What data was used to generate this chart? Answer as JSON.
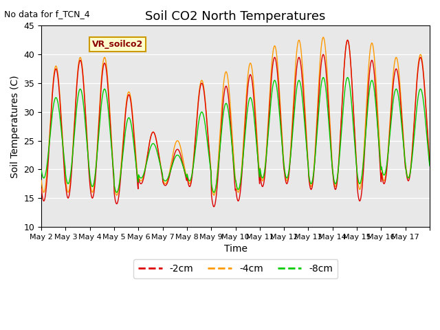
{
  "title": "Soil CO2 North Temperatures",
  "ylabel": "Soil Temperatures (C)",
  "xlabel": "Time",
  "no_data_text": "No data for f_TCN_4",
  "label_text": "VR_soilco2",
  "ylim": [
    10,
    45
  ],
  "background_color": "#e8e8e8",
  "tick_dates": [
    "May 2",
    "May 3",
    "May 4",
    "May 5",
    "May 6",
    "May 7",
    "May 8",
    "May 9",
    "May 10",
    "May 11",
    "May 12",
    "May 13",
    "May 14",
    "May 15",
    "May 16",
    "May 17",
    ""
  ],
  "colors": {
    "2cm": "#dd0000",
    "4cm": "#ff9900",
    "8cm": "#00cc00"
  },
  "legend": [
    "-2cm",
    "-4cm",
    "-8cm"
  ],
  "n_days": 16,
  "pts_per_day": 48,
  "day_peaks_2cm": [
    37.5,
    39.0,
    38.5,
    33.0,
    26.5,
    23.5,
    35.0,
    34.5,
    36.5,
    39.5,
    39.5,
    40.0,
    42.5,
    39.0,
    37.5,
    39.5
  ],
  "day_troughs_2cm": [
    14.5,
    15.0,
    15.0,
    14.0,
    17.5,
    17.2,
    17.0,
    13.5,
    14.5,
    17.0,
    17.5,
    16.5,
    16.5,
    14.5,
    17.5,
    18.0
  ],
  "day_peaks_4cm": [
    38.0,
    39.5,
    39.5,
    33.5,
    26.5,
    25.0,
    35.5,
    37.0,
    38.5,
    41.5,
    42.5,
    43.0,
    42.5,
    42.0,
    39.5,
    40.0
  ],
  "day_troughs_4cm": [
    16.0,
    16.0,
    16.0,
    15.5,
    18.0,
    17.5,
    17.5,
    15.5,
    16.0,
    18.0,
    18.0,
    17.0,
    17.0,
    16.5,
    18.0,
    18.5
  ],
  "day_peaks_8cm": [
    32.5,
    34.0,
    34.0,
    29.0,
    24.5,
    22.5,
    30.0,
    31.5,
    32.5,
    35.5,
    35.5,
    36.0,
    36.0,
    35.5,
    34.0,
    34.0
  ],
  "day_troughs_8cm": [
    18.5,
    17.5,
    17.0,
    16.0,
    18.5,
    18.0,
    18.0,
    16.0,
    16.5,
    18.5,
    18.5,
    17.5,
    17.5,
    17.5,
    19.0,
    18.5
  ]
}
